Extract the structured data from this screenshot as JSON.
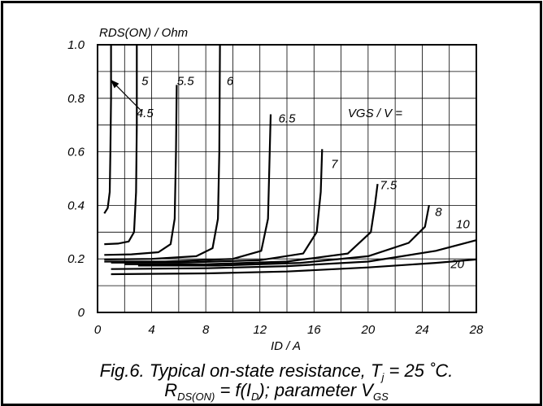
{
  "chart_data": {
    "type": "line",
    "ylabel": "RDS(ON) / Ohm",
    "xlabel": "ID / A",
    "param_label": "VGS / V =",
    "xlim": [
      0,
      28
    ],
    "ylim": [
      0,
      1.0
    ],
    "x_ticks": [
      "0",
      "4",
      "8",
      "12",
      "16",
      "20",
      "24",
      "28"
    ],
    "y_ticks": [
      "0",
      "0.2",
      "0.4",
      "0.6",
      "0.8",
      "1.0"
    ],
    "grid": true,
    "series": [
      {
        "name": "4.5",
        "points": [
          [
            0.5,
            0.37
          ],
          [
            0.75,
            0.39
          ],
          [
            0.9,
            0.45
          ],
          [
            0.95,
            0.6
          ],
          [
            1.0,
            0.8
          ],
          [
            1.0,
            1.0
          ]
        ]
      },
      {
        "name": "5",
        "points": [
          [
            0.5,
            0.255
          ],
          [
            1.5,
            0.257
          ],
          [
            2.3,
            0.265
          ],
          [
            2.7,
            0.3
          ],
          [
            2.85,
            0.45
          ],
          [
            2.9,
            0.7
          ],
          [
            2.9,
            1.0
          ]
        ]
      },
      {
        "name": "5.5",
        "points": [
          [
            0.5,
            0.215
          ],
          [
            2.5,
            0.217
          ],
          [
            4.5,
            0.225
          ],
          [
            5.4,
            0.255
          ],
          [
            5.7,
            0.35
          ],
          [
            5.8,
            0.6
          ],
          [
            5.85,
            0.85
          ]
        ]
      },
      {
        "name": "6",
        "points": [
          [
            0.5,
            0.198
          ],
          [
            4,
            0.2
          ],
          [
            7.3,
            0.21
          ],
          [
            8.5,
            0.24
          ],
          [
            8.9,
            0.35
          ],
          [
            9.0,
            0.6
          ],
          [
            9.05,
            1.0
          ]
        ]
      },
      {
        "name": "6.5",
        "points": [
          [
            0.5,
            0.19
          ],
          [
            5,
            0.19
          ],
          [
            10,
            0.2
          ],
          [
            12.1,
            0.23
          ],
          [
            12.6,
            0.35
          ],
          [
            12.7,
            0.55
          ],
          [
            12.8,
            0.74
          ]
        ]
      },
      {
        "name": "7",
        "points": [
          [
            1,
            0.186
          ],
          [
            6,
            0.186
          ],
          [
            12,
            0.195
          ],
          [
            15.2,
            0.22
          ],
          [
            16.2,
            0.3
          ],
          [
            16.5,
            0.45
          ],
          [
            16.6,
            0.61
          ]
        ]
      },
      {
        "name": "7.5",
        "points": [
          [
            2,
            0.18
          ],
          [
            8,
            0.18
          ],
          [
            14,
            0.19
          ],
          [
            18.5,
            0.22
          ],
          [
            20.2,
            0.3
          ],
          [
            20.5,
            0.4
          ],
          [
            20.7,
            0.48
          ]
        ]
      },
      {
        "name": "8",
        "points": [
          [
            3,
            0.175
          ],
          [
            9,
            0.175
          ],
          [
            15,
            0.185
          ],
          [
            20,
            0.21
          ],
          [
            23,
            0.26
          ],
          [
            24.2,
            0.32
          ],
          [
            24.5,
            0.4
          ]
        ]
      },
      {
        "name": "10",
        "points": [
          [
            1,
            0.162
          ],
          [
            8,
            0.165
          ],
          [
            14,
            0.173
          ],
          [
            20,
            0.19
          ],
          [
            25,
            0.23
          ],
          [
            28,
            0.27
          ]
        ]
      },
      {
        "name": "20",
        "points": [
          [
            1,
            0.143
          ],
          [
            8,
            0.146
          ],
          [
            14,
            0.153
          ],
          [
            20,
            0.168
          ],
          [
            25,
            0.185
          ],
          [
            28,
            0.198
          ]
        ]
      }
    ],
    "curve_labels": [
      {
        "text": "4.5",
        "x": 3.5,
        "y": 0.73
      },
      {
        "text": "5",
        "x": 3.5,
        "y": 0.85
      },
      {
        "text": "5.5",
        "x": 6.5,
        "y": 0.85
      },
      {
        "text": "6",
        "x": 9.8,
        "y": 0.85
      },
      {
        "text": "6.5",
        "x": 14.0,
        "y": 0.71
      },
      {
        "text": "7",
        "x": 17.5,
        "y": 0.54
      },
      {
        "text": "7.5",
        "x": 21.5,
        "y": 0.46
      },
      {
        "text": "8",
        "x": 25.2,
        "y": 0.36
      },
      {
        "text": "10",
        "x": 27.0,
        "y": 0.315
      },
      {
        "text": "20",
        "x": 26.6,
        "y": 0.165
      }
    ],
    "param_label_pos": {
      "x": 18.5,
      "y": 0.73
    },
    "arrow": {
      "from": [
        3.3,
        0.75
      ],
      "to": [
        0.95,
        0.87
      ]
    },
    "caption": {
      "line1_prefix": "Fig.6.   Typical on-state resistance, T",
      "line1_sub": "j",
      "line1_suffix": " = 25 ˚C.",
      "line2_r": "R",
      "line2_sub": "DS(ON)",
      "line2_mid": " = f(I",
      "line2_sub2": "D",
      "line2_end": "); parameter V",
      "line2_sub3": "GS"
    }
  }
}
